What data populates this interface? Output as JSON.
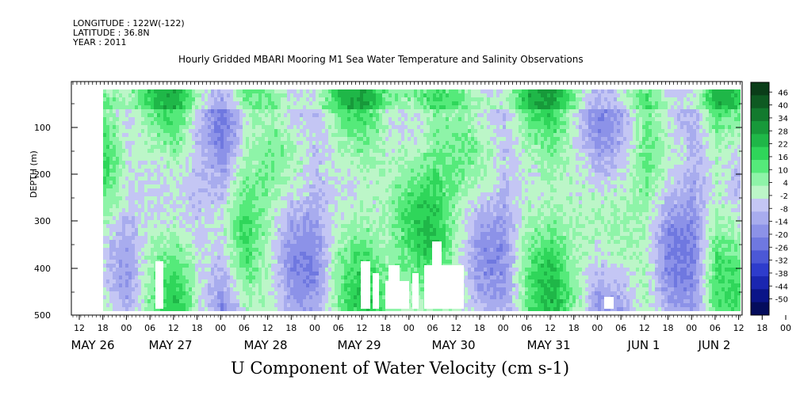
{
  "header": {
    "longitude": "LONGITUDE : 122W(-122)",
    "latitude": "LATITUDE : 36.8N",
    "year": "YEAR : 2011"
  },
  "chart_data": {
    "type": "heatmap",
    "title": "Hourly Gridded MBARI Mooring M1 Sea Water Temperature and Salinity Observations",
    "xlabel": "",
    "ylabel": "DEPTH (m)",
    "colorbar_title": "U Component of Water Velocity (cm s-1)",
    "ylim": [
      500,
      0
    ],
    "y_ticks": [
      100,
      200,
      300,
      400,
      500
    ],
    "x_hour_ticks": [
      "12",
      "18",
      "00",
      "06",
      "12",
      "18",
      "00",
      "06",
      "12",
      "18",
      "00",
      "06",
      "12",
      "18",
      "00",
      "06",
      "12",
      "18",
      "00",
      "06",
      "12",
      "18",
      "00",
      "06",
      "12",
      "18",
      "00",
      "06",
      "12",
      "18",
      "00",
      "06"
    ],
    "x_date_labels": [
      "MAY 26",
      "MAY 27",
      "MAY 28",
      "MAY 29",
      "MAY 30",
      "MAY 31",
      "JUN  1",
      "JUN  2"
    ],
    "colorbar_levels": [
      "46",
      "40",
      "34",
      "28",
      "22",
      "16",
      "10",
      "4",
      "-2",
      "-8",
      "-14",
      "-20",
      "-26",
      "-32",
      "-38",
      "-44",
      "-50"
    ],
    "colorbar_colors": [
      "#0a3d18",
      "#0e5a22",
      "#127a2e",
      "#17993a",
      "#1fb748",
      "#2fd65a",
      "#55ea7a",
      "#8ef4a8",
      "#bcf6c8",
      "#c4c6f4",
      "#a8acee",
      "#8c92e8",
      "#6f78e0",
      "#4c58d6",
      "#2e3ccc",
      "#1a26b0",
      "#0a1488",
      "#040c5c"
    ],
    "series": [
      {
        "values_description": "",
        "x_hours": [],
        "depths": []
      }
    ],
    "bands": [
      {
        "t_hours": 12,
        "u": -5
      },
      {
        "t_hours": 18,
        "u": 6
      },
      {
        "t_hours": 24,
        "u": -6
      },
      {
        "t_hours": 30,
        "u": 4
      },
      {
        "t_hours": 36,
        "u": 10
      },
      {
        "t_hours": 42,
        "u": -4
      },
      {
        "t_hours": 48,
        "u": -12
      },
      {
        "t_hours": 54,
        "u": 8
      },
      {
        "t_hours": 60,
        "u": 4
      },
      {
        "t_hours": 66,
        "u": -8
      },
      {
        "t_hours": 72,
        "u": -10
      },
      {
        "t_hours": 78,
        "u": 6
      },
      {
        "t_hours": 84,
        "u": 12
      },
      {
        "t_hours": 90,
        "u": 4
      },
      {
        "t_hours": 96,
        "u": 8
      },
      {
        "t_hours": 102,
        "u": 14
      },
      {
        "t_hours": 108,
        "u": 4
      },
      {
        "t_hours": 114,
        "u": -6
      },
      {
        "t_hours": 120,
        "u": -10
      },
      {
        "t_hours": 126,
        "u": 8
      },
      {
        "t_hours": 132,
        "u": 14
      },
      {
        "t_hours": 138,
        "u": 2
      },
      {
        "t_hours": 144,
        "u": -8
      },
      {
        "t_hours": 150,
        "u": -4
      },
      {
        "t_hours": 156,
        "u": 6
      },
      {
        "t_hours": 162,
        "u": -10
      },
      {
        "t_hours": 168,
        "u": -14
      },
      {
        "t_hours": 174,
        "u": 10
      },
      {
        "t_hours": 180,
        "u": 4
      },
      {
        "t_hours": 186,
        "u": -12
      },
      {
        "t_hours": 192,
        "u": -8
      },
      {
        "t_hours": 198,
        "u": 10
      }
    ]
  }
}
